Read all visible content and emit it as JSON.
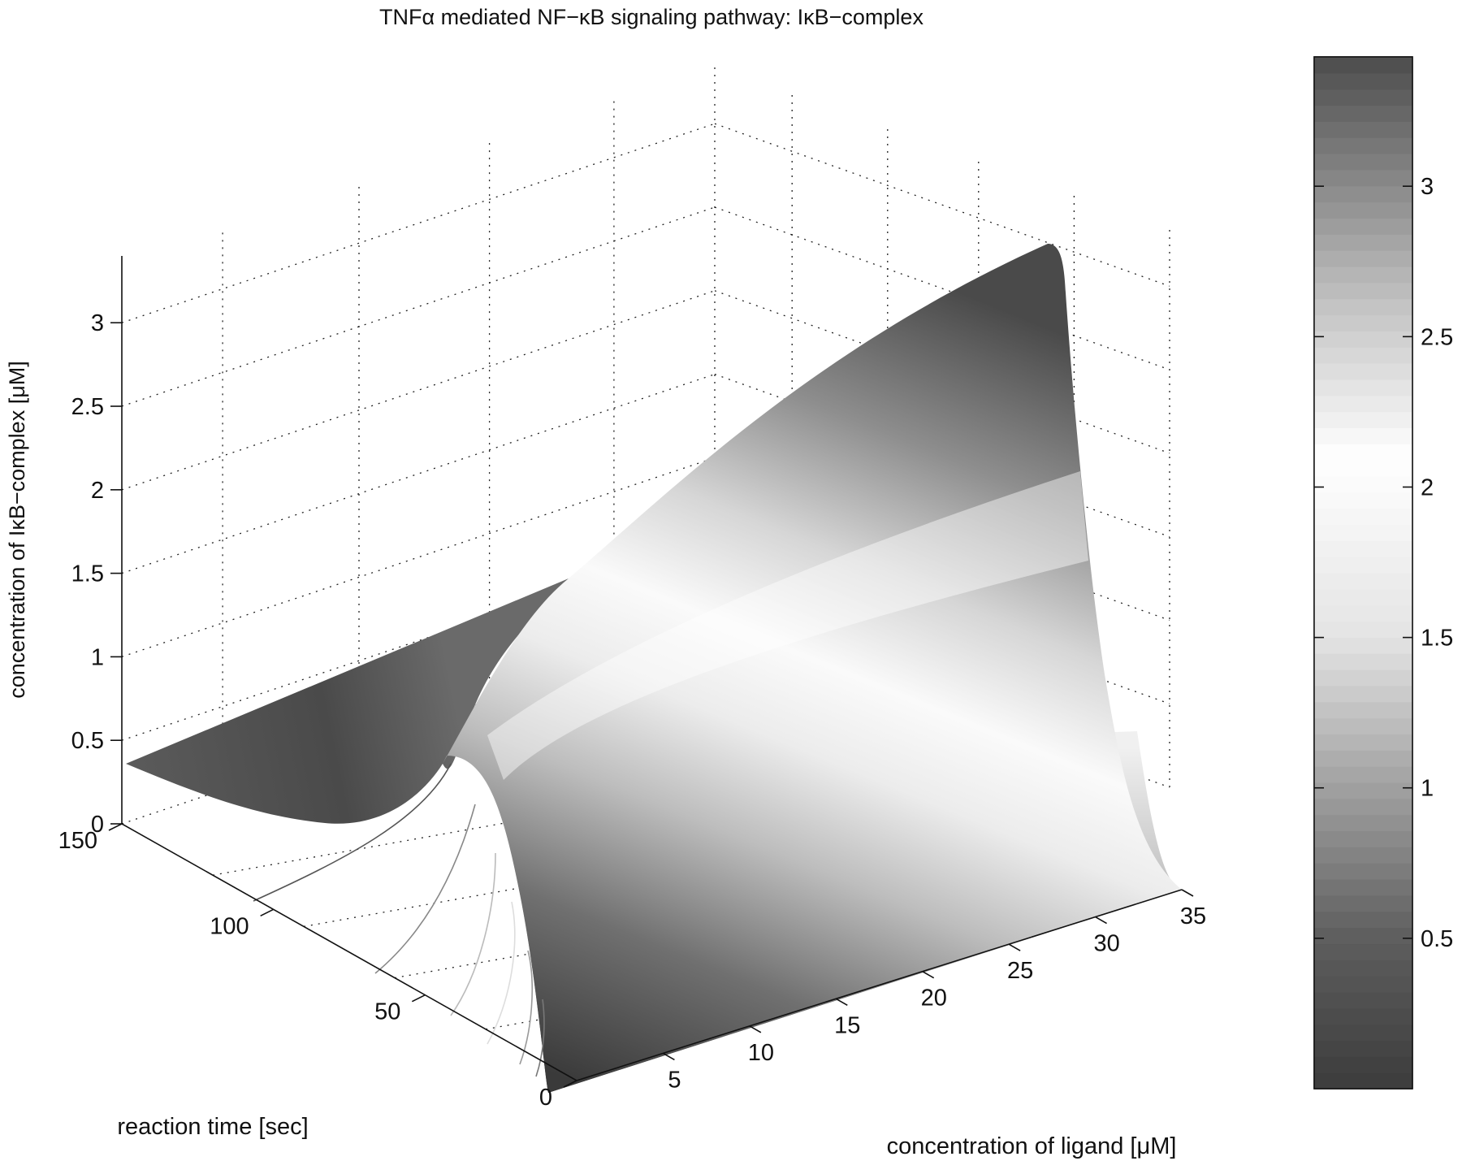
{
  "chart_data": {
    "type": "surface",
    "title": "TNFα mediated NF−κB signaling pathway: IκB−complex",
    "xlabel": "concentration of ligand [μM]",
    "ylabel": "reaction time [sec]",
    "zlabel": "concentration of IκB−complex [μM]",
    "x_ticks": [
      "5",
      "10",
      "15",
      "20",
      "25",
      "30",
      "35"
    ],
    "y_ticks": [
      "0",
      "50",
      "100",
      "150"
    ],
    "z_ticks": [
      "0",
      "0.5",
      "1",
      "1.5",
      "2",
      "2.5",
      "3"
    ],
    "xlim": [
      0,
      35
    ],
    "ylim": [
      0,
      150
    ],
    "zlim": [
      0,
      3.4
    ],
    "grid": true,
    "colormap": "gray (dark at both ends, light near 2)",
    "colorbar": {
      "ticks": [
        "0.5",
        "1",
        "1.5",
        "2",
        "2.5",
        "3"
      ],
      "range": [
        0,
        3.43
      ],
      "stops": [
        {
          "v": 0.0,
          "color": "#3c3c3c"
        },
        {
          "v": 0.5,
          "color": "#5e5e5e"
        },
        {
          "v": 1.0,
          "color": "#a0a0a0"
        },
        {
          "v": 1.5,
          "color": "#e4e4e4"
        },
        {
          "v": 2.1,
          "color": "#ffffff"
        },
        {
          "v": 2.6,
          "color": "#c4c4c4"
        },
        {
          "v": 3.0,
          "color": "#8a8a8a"
        },
        {
          "v": 3.43,
          "color": "#4c4c4c"
        }
      ]
    },
    "surface_samples": [
      {
        "x": 0,
        "y": 0,
        "z": 0.0
      },
      {
        "x": 0,
        "y": 150,
        "z": 0.37
      },
      {
        "x": 35,
        "y": 0,
        "z": 0.0
      },
      {
        "x": 35,
        "y": 150,
        "z": 3.43
      },
      {
        "x": 7,
        "y": 150,
        "z": 1.15
      },
      {
        "x": 20,
        "y": 150,
        "z": 2.6
      }
    ]
  }
}
